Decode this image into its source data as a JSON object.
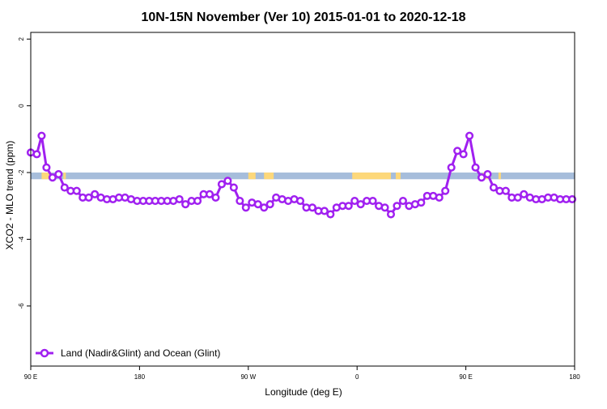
{
  "chart_data": {
    "type": "line",
    "title": "10N-15N November (Ver 10)   2015-01-01 to 2020-12-18",
    "xlabel": "Longitude (deg E)",
    "ylabel": "XCO2 - MLO trend (ppm)",
    "xlim": [
      90,
      540
    ],
    "ylim": [
      -7.8,
      2.2
    ],
    "x_ticks": [
      {
        "value": 90,
        "label": "90 E"
      },
      {
        "value": 180,
        "label": "180"
      },
      {
        "value": 270,
        "label": "90 W"
      },
      {
        "value": 360,
        "label": "0"
      },
      {
        "value": 450,
        "label": "90 E"
      },
      {
        "value": 540,
        "label": "180"
      }
    ],
    "y_ticks": [
      {
        "value": 2,
        "label": "2"
      },
      {
        "value": 0,
        "label": "0"
      },
      {
        "value": -2,
        "label": "-2"
      },
      {
        "value": -4,
        "label": "-4"
      },
      {
        "value": -6,
        "label": "-6"
      }
    ],
    "land_band": {
      "ocean_color": "#a6bddb",
      "land_color": "#fdd87a",
      "y_range": [
        -2.2,
        -2.0
      ],
      "land_segments": [
        [
          99,
          107
        ],
        [
          117,
          119
        ],
        [
          270,
          276
        ],
        [
          283,
          291
        ],
        [
          356,
          388
        ],
        [
          392,
          396
        ],
        [
          464,
          470
        ],
        [
          477,
          479
        ]
      ]
    },
    "series": [
      {
        "name": "Land (Nadir&Glint) and Ocean (Glint)",
        "color": "#a020f0",
        "x": [
          90,
          95,
          99,
          103,
          108,
          113,
          118,
          123,
          128,
          133,
          138,
          143,
          148,
          153,
          158,
          163,
          168,
          173,
          178,
          183,
          188,
          193,
          198,
          203,
          208,
          213,
          218,
          223,
          228,
          233,
          238,
          243,
          248,
          253,
          258,
          263,
          268,
          273,
          278,
          283,
          288,
          293,
          298,
          303,
          308,
          313,
          318,
          323,
          328,
          333,
          338,
          343,
          348,
          353,
          358,
          363,
          368,
          373,
          378,
          383,
          388,
          393,
          398,
          403,
          408,
          413,
          418,
          423,
          428,
          433,
          438,
          443,
          448,
          453,
          458,
          463,
          468,
          473,
          478,
          483,
          488,
          493,
          498,
          503,
          508,
          513,
          518,
          523,
          528,
          533,
          538
        ],
        "y": [
          -1.4,
          -1.45,
          -0.9,
          -1.85,
          -2.15,
          -2.05,
          -2.45,
          -2.55,
          -2.55,
          -2.75,
          -2.75,
          -2.65,
          -2.75,
          -2.8,
          -2.8,
          -2.75,
          -2.75,
          -2.8,
          -2.85,
          -2.85,
          -2.85,
          -2.85,
          -2.85,
          -2.85,
          -2.85,
          -2.8,
          -2.95,
          -2.85,
          -2.85,
          -2.65,
          -2.65,
          -2.75,
          -2.35,
          -2.25,
          -2.45,
          -2.85,
          -3.05,
          -2.9,
          -2.95,
          -3.05,
          -2.95,
          -2.75,
          -2.8,
          -2.85,
          -2.8,
          -2.85,
          -3.05,
          -3.05,
          -3.15,
          -3.15,
          -3.25,
          -3.05,
          -3.0,
          -3.0,
          -2.85,
          -2.95,
          -2.85,
          -2.85,
          -3.0,
          -3.05,
          -3.25,
          -3.0,
          -2.85,
          -3.0,
          -2.95,
          -2.9,
          -2.7,
          -2.7,
          -2.75,
          -2.55,
          -1.85,
          -1.35,
          -1.45,
          -0.9,
          -1.85,
          -2.15,
          -2.05,
          -2.45,
          -2.55,
          -2.55,
          -2.75,
          -2.75,
          -2.65,
          -2.75,
          -2.8,
          -2.8,
          -2.75,
          -2.75,
          -2.8,
          -2.8,
          -2.8
        ]
      }
    ],
    "legend_position": "bottom-left"
  }
}
